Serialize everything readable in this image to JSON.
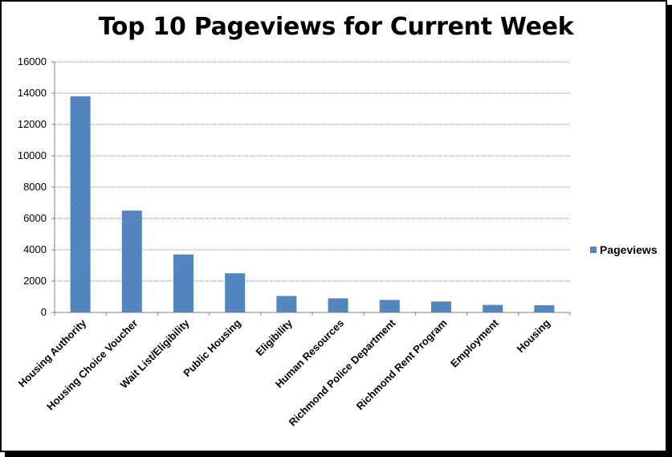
{
  "chart_data": {
    "type": "bar",
    "title": "Top 10 Pageviews for Current Week",
    "xlabel": "",
    "ylabel": "",
    "ylim": [
      0,
      16000
    ],
    "yticks": [
      "0",
      "2000",
      "4000",
      "6000",
      "8000",
      "10000",
      "12000",
      "14000",
      "16000"
    ],
    "grid": true,
    "legend_position": "right",
    "bar_color": "#4f81bd",
    "categories": [
      "Housing Authority",
      "Housing Choice Voucher",
      "Wait List/Eligibility",
      "Public Housing",
      "Eligibility",
      "Human Resources",
      "Richmond Police Department",
      "Richmond Rent Program",
      "Employment",
      "Housing"
    ],
    "series": [
      {
        "name": "Pageviews",
        "values": [
          13800,
          6500,
          3700,
          2500,
          1050,
          900,
          800,
          700,
          480,
          460
        ]
      }
    ]
  }
}
